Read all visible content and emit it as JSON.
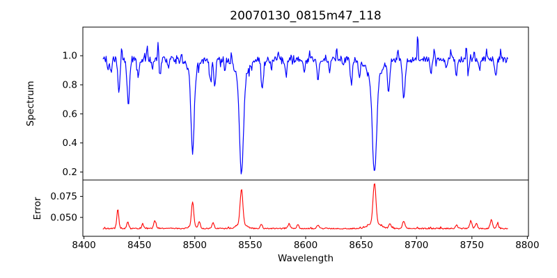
{
  "figure": {
    "title": "20070130_0815m47_118",
    "background_color": "#ffffff",
    "text_color": "#000000"
  },
  "chart_data": [
    {
      "type": "line",
      "panel": "spectrum",
      "title": "20070130_0815m47_118",
      "xlabel": "Wavelength",
      "ylabel": "Spectrum",
      "legend": "none",
      "grid": false,
      "line_color": "#0000ff",
      "xlim": [
        8399,
        8801
      ],
      "ylim": [
        0.145,
        1.197
      ],
      "xticks": [
        8400,
        8450,
        8500,
        8550,
        8600,
        8650,
        8700,
        8750,
        8800
      ],
      "xtick_labels": [
        "8400",
        "8450",
        "8500",
        "8550",
        "8600",
        "8650",
        "8700",
        "8750",
        "8800"
      ],
      "yticks": [
        0.2,
        0.4,
        0.6,
        0.8,
        1.0
      ],
      "ytick_labels": [
        "0.2",
        "0.4",
        "0.6",
        "0.8",
        "1.0"
      ],
      "x_data_range": [
        8417,
        8783
      ],
      "sample_step": 0.6,
      "continuum_level": 0.975,
      "noise_amplitude": 0.02,
      "absorption_lines": [
        {
          "center": 8421.5,
          "depth": 0.06,
          "sigma": 0.8
        },
        {
          "center": 8424.5,
          "depth": 0.1,
          "sigma": 0.8
        },
        {
          "center": 8431.5,
          "depth": 0.2,
          "sigma": 1.0
        },
        {
          "center": 8440.0,
          "depth": 0.32,
          "sigma": 1.1
        },
        {
          "center": 8449.0,
          "depth": 0.13,
          "sigma": 0.9
        },
        {
          "center": 8462.0,
          "depth": 0.08,
          "sigma": 0.8
        },
        {
          "center": 8468.5,
          "depth": 0.11,
          "sigma": 0.9
        },
        {
          "center": 8476.0,
          "depth": 0.06,
          "sigma": 0.7
        },
        {
          "center": 8498.0,
          "depth": 0.55,
          "sigma": 1.4
        },
        {
          "center": 8498.0,
          "depth": 0.09,
          "sigma": 4.5
        },
        {
          "center": 8514.2,
          "depth": 0.17,
          "sigma": 0.9
        },
        {
          "center": 8518.0,
          "depth": 0.2,
          "sigma": 0.9
        },
        {
          "center": 8527.0,
          "depth": 0.07,
          "sigma": 0.7
        },
        {
          "center": 8542.1,
          "depth": 0.67,
          "sigma": 1.8
        },
        {
          "center": 8542.1,
          "depth": 0.12,
          "sigma": 5.5
        },
        {
          "center": 8560.8,
          "depth": 0.22,
          "sigma": 1.0
        },
        {
          "center": 8569.0,
          "depth": 0.06,
          "sigma": 0.7
        },
        {
          "center": 8582.3,
          "depth": 0.11,
          "sigma": 0.9
        },
        {
          "center": 8598.8,
          "depth": 0.09,
          "sigma": 0.8
        },
        {
          "center": 8611.0,
          "depth": 0.14,
          "sigma": 0.9
        },
        {
          "center": 8621.7,
          "depth": 0.08,
          "sigma": 0.7
        },
        {
          "center": 8634.0,
          "depth": 0.06,
          "sigma": 0.7
        },
        {
          "center": 8641.3,
          "depth": 0.17,
          "sigma": 0.9
        },
        {
          "center": 8648.5,
          "depth": 0.12,
          "sigma": 0.8
        },
        {
          "center": 8662.1,
          "depth": 0.65,
          "sigma": 1.9
        },
        {
          "center": 8662.1,
          "depth": 0.13,
          "sigma": 6.0
        },
        {
          "center": 8674.8,
          "depth": 0.21,
          "sigma": 1.0
        },
        {
          "center": 8688.6,
          "depth": 0.27,
          "sigma": 1.2
        },
        {
          "center": 8713.2,
          "depth": 0.09,
          "sigma": 0.8
        },
        {
          "center": 8727.0,
          "depth": 0.06,
          "sigma": 0.7
        },
        {
          "center": 8736.0,
          "depth": 0.1,
          "sigma": 0.9
        },
        {
          "center": 8747.0,
          "depth": 0.09,
          "sigma": 0.8
        },
        {
          "center": 8757.0,
          "depth": 0.07,
          "sigma": 0.7
        },
        {
          "center": 8771.5,
          "depth": 0.11,
          "sigma": 0.9
        }
      ],
      "upward_spikes": [
        {
          "center": 8434,
          "height": 0.1,
          "sigma": 0.45
        },
        {
          "center": 8457,
          "height": 0.07,
          "sigma": 0.45
        },
        {
          "center": 8467,
          "height": 0.13,
          "sigma": 0.45
        },
        {
          "center": 8488,
          "height": 0.06,
          "sigma": 0.45
        },
        {
          "center": 8533,
          "height": 0.07,
          "sigma": 0.45
        },
        {
          "center": 8575,
          "height": 0.06,
          "sigma": 0.45
        },
        {
          "center": 8604,
          "height": 0.07,
          "sigma": 0.45
        },
        {
          "center": 8628,
          "height": 0.09,
          "sigma": 0.45
        },
        {
          "center": 8683,
          "height": 0.07,
          "sigma": 0.45
        },
        {
          "center": 8701,
          "height": 0.17,
          "sigma": 0.45
        },
        {
          "center": 8716,
          "height": 0.08,
          "sigma": 0.45
        },
        {
          "center": 8731,
          "height": 0.08,
          "sigma": 0.45
        },
        {
          "center": 8745,
          "height": 0.09,
          "sigma": 0.45
        },
        {
          "center": 8752,
          "height": 0.07,
          "sigma": 0.45
        },
        {
          "center": 8763,
          "height": 0.06,
          "sigma": 0.45
        },
        {
          "center": 8776,
          "height": 0.07,
          "sigma": 0.45
        }
      ]
    },
    {
      "type": "line",
      "panel": "error",
      "xlabel": "Wavelength",
      "ylabel": "Error",
      "legend": "none",
      "grid": false,
      "line_color": "#ff0000",
      "xlim": [
        8399,
        8801
      ],
      "ylim": [
        0.0275,
        0.0945
      ],
      "yticks": [
        0.05,
        0.075
      ],
      "ytick_labels": [
        "0.050",
        "0.075"
      ],
      "x_data_range": [
        8417,
        8783
      ],
      "sample_step": 0.6,
      "baseline_level": 0.0368,
      "noise_amplitude": 0.0007,
      "peaks": [
        {
          "center": 8430.5,
          "height": 0.0225,
          "sigma": 0.9
        },
        {
          "center": 8439.5,
          "height": 0.0075,
          "sigma": 0.9
        },
        {
          "center": 8453.0,
          "height": 0.005,
          "sigma": 0.9
        },
        {
          "center": 8464.0,
          "height": 0.009,
          "sigma": 1.0
        },
        {
          "center": 8498.0,
          "height": 0.028,
          "sigma": 1.0
        },
        {
          "center": 8498.0,
          "height": 0.004,
          "sigma": 3.0
        },
        {
          "center": 8504.0,
          "height": 0.008,
          "sigma": 0.9
        },
        {
          "center": 8516.5,
          "height": 0.0065,
          "sigma": 1.0
        },
        {
          "center": 8542.1,
          "height": 0.041,
          "sigma": 1.2
        },
        {
          "center": 8542.1,
          "height": 0.006,
          "sigma": 4.0
        },
        {
          "center": 8560.0,
          "height": 0.005,
          "sigma": 1.0
        },
        {
          "center": 8585.0,
          "height": 0.0055,
          "sigma": 1.0
        },
        {
          "center": 8593.0,
          "height": 0.0045,
          "sigma": 0.9
        },
        {
          "center": 8611.0,
          "height": 0.004,
          "sigma": 1.0
        },
        {
          "center": 8662.1,
          "height": 0.047,
          "sigma": 1.3
        },
        {
          "center": 8662.1,
          "height": 0.007,
          "sigma": 5.0
        },
        {
          "center": 8676.0,
          "height": 0.0055,
          "sigma": 1.0
        },
        {
          "center": 8688.5,
          "height": 0.009,
          "sigma": 1.1
        },
        {
          "center": 8736.0,
          "height": 0.004,
          "sigma": 1.0
        },
        {
          "center": 8749.0,
          "height": 0.0085,
          "sigma": 1.0
        },
        {
          "center": 8754.0,
          "height": 0.006,
          "sigma": 0.9
        },
        {
          "center": 8767.5,
          "height": 0.0105,
          "sigma": 1.0
        },
        {
          "center": 8773.0,
          "height": 0.006,
          "sigma": 0.9
        }
      ]
    }
  ]
}
